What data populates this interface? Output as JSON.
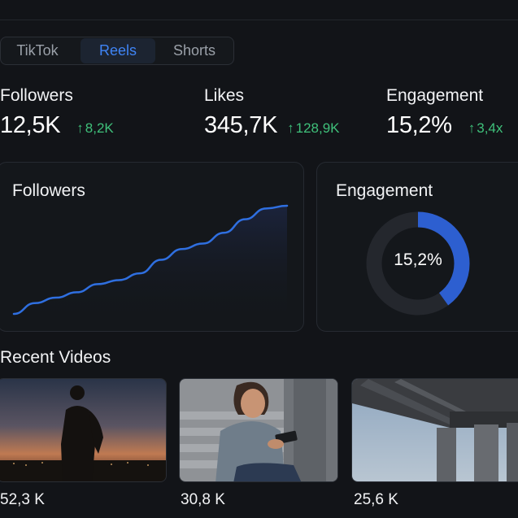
{
  "tabs": [
    {
      "label": "TikTok"
    },
    {
      "label": "Reels",
      "active": true
    },
    {
      "label": "Shorts"
    }
  ],
  "stats": [
    {
      "label": "Followers",
      "value": "12,5K",
      "delta": "8,2K"
    },
    {
      "label": "Likes",
      "value": "345,7K",
      "delta": "128,9K"
    },
    {
      "label": "Engagement",
      "value": "15,2%",
      "delta": "3,4x"
    }
  ],
  "followers_card": {
    "title": "Followers",
    "chart_data": {
      "type": "area",
      "values": [
        0,
        8,
        12,
        16,
        22,
        25,
        30,
        40,
        48,
        52,
        60,
        70,
        78,
        80
      ],
      "color": "#2f6fe0"
    }
  },
  "engagement_card": {
    "title": "Engagement",
    "percent_label": "15,2%",
    "ring_fraction": 0.4,
    "ring_color": "#2d5fd0",
    "track_color": "#24272d"
  },
  "recent_videos": {
    "title": "Recent Videos",
    "items": [
      {
        "views": "52,3 K"
      },
      {
        "views": "30,8 K"
      },
      {
        "views": "25,6 K"
      }
    ]
  },
  "colors": {
    "accent": "#3f84f5",
    "positive": "#3fc07a",
    "background": "#121418"
  }
}
